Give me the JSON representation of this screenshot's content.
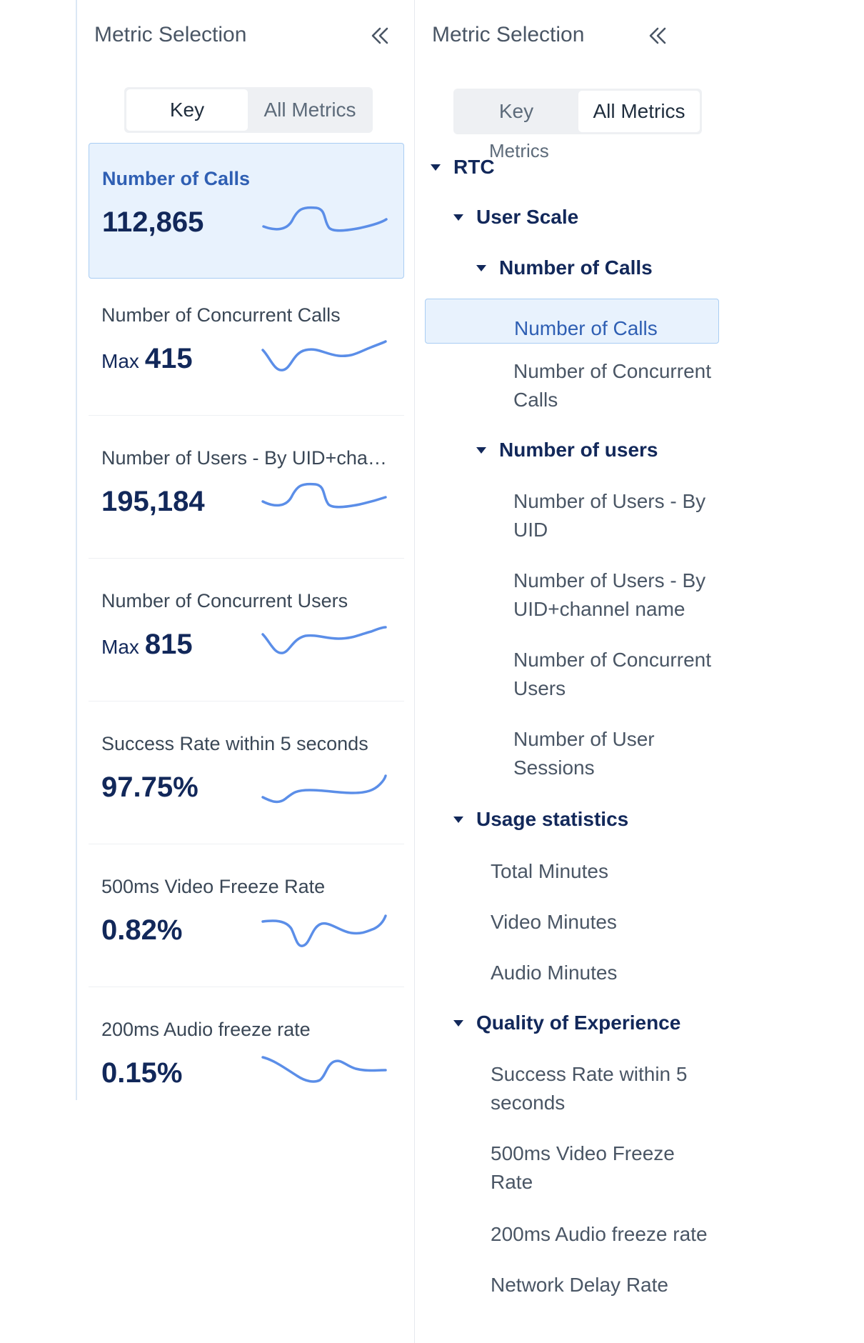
{
  "left_panel": {
    "title": "Metric Selection",
    "tabs": [
      {
        "label": "Key"
      },
      {
        "label": "All Metrics"
      }
    ],
    "active_tab": "Key",
    "cards": [
      {
        "title": "Number of Calls",
        "prefix": "",
        "value": "112,865",
        "selected": true
      },
      {
        "title": "Number of Concurrent Calls",
        "prefix": "Max",
        "value": "415",
        "selected": false
      },
      {
        "title": "Number of Users - By UID+channel name",
        "prefix": "",
        "value": "195,184",
        "selected": false
      },
      {
        "title": "Number of Concurrent Users",
        "prefix": "Max",
        "value": "815",
        "selected": false
      },
      {
        "title": "Success Rate within 5 seconds",
        "prefix": "",
        "value": "97.75%",
        "selected": false
      },
      {
        "title": "500ms Video Freeze Rate",
        "prefix": "",
        "value": "0.82%",
        "selected": false
      },
      {
        "title": "200ms Audio freeze rate",
        "prefix": "",
        "value": "0.15%",
        "selected": false
      }
    ]
  },
  "right_panel": {
    "title": "Metric Selection",
    "tabs": [
      {
        "label": "Key"
      },
      {
        "label": "All Metrics"
      }
    ],
    "tab_sublabel": "Metrics",
    "active_tab": "All Metrics",
    "tree": {
      "root": "RTC",
      "user_scale": "User Scale",
      "number_of_calls_group": "Number of Calls",
      "calls_items": [
        "Number of Calls",
        "Number of Concurrent Calls"
      ],
      "number_of_users_group": "Number of users",
      "users_items": [
        "Number of Users - By UID",
        "Number of Users - By UID+channel name",
        "Number of Concurrent Users",
        "Number of User Sessions"
      ],
      "usage_statistics": "Usage statistics",
      "usage_items": [
        "Total Minutes",
        "Video Minutes",
        "Audio Minutes"
      ],
      "quality_of_experience": "Quality of Experience",
      "quality_items": [
        "Success Rate within 5 seconds",
        "500ms Video Freeze Rate",
        "200ms Audio freeze rate",
        "Network Delay Rate"
      ]
    },
    "selected_item": "Number of Calls"
  },
  "colors": {
    "accent": "#2f5fb3",
    "selected_bg": "#e8f2fd",
    "value_text": "#12285a",
    "sparkline": "#5b8ee8"
  }
}
